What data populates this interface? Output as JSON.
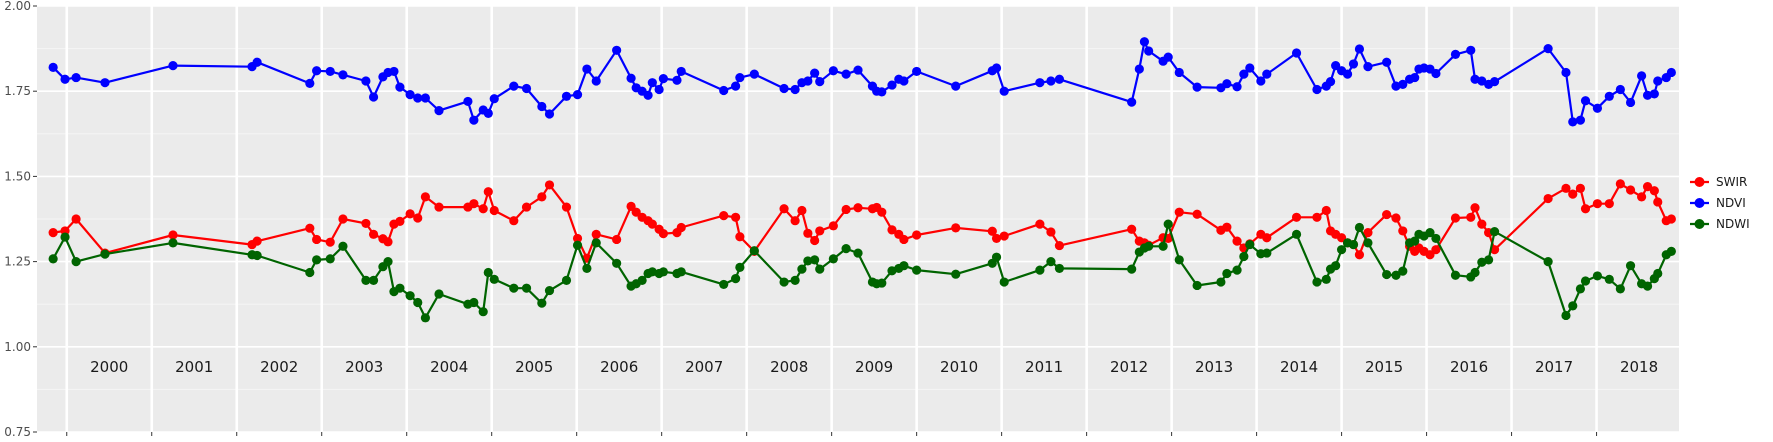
{
  "chart_data": {
    "type": "line",
    "title": "",
    "xlabel": "",
    "ylabel": "",
    "ylim": [
      0.75,
      2.0
    ],
    "yticks": [
      "0.75",
      "1.00",
      "1.25",
      "1.50",
      "1.75",
      "2.00"
    ],
    "xlim": [
      1999.65,
      2018.97
    ],
    "years": [
      "2000",
      "2001",
      "2002",
      "2003",
      "2004",
      "2005",
      "2006",
      "2007",
      "2008",
      "2009",
      "2010",
      "2011",
      "2012",
      "2013",
      "2014",
      "2015",
      "2016",
      "2017",
      "2018"
    ],
    "grid": true,
    "legend_position": "right",
    "series": [
      {
        "name": "SWIR",
        "color": "#ff0000",
        "x": [
          1999.84,
          1999.98,
          2000.11,
          2000.45,
          2001.25,
          2002.18,
          2002.24,
          2002.86,
          2002.94,
          2003.1,
          2003.25,
          2003.52,
          2003.61,
          2003.72,
          2003.78,
          2003.85,
          2003.92,
          2004.04,
          2004.13,
          2004.22,
          2004.38,
          2004.72,
          2004.79,
          2004.9,
          2004.96,
          2005.03,
          2005.26,
          2005.41,
          2005.59,
          2005.68,
          2005.88,
          2006.01,
          2006.12,
          2006.23,
          2006.47,
          2006.64,
          2006.7,
          2006.77,
          2006.84,
          2006.89,
          2006.97,
          2007.02,
          2007.18,
          2007.23,
          2007.73,
          2007.87,
          2007.92,
          2008.09,
          2008.44,
          2008.57,
          2008.65,
          2008.72,
          2008.8,
          2008.86,
          2009.02,
          2009.17,
          2009.31,
          2009.48,
          2009.53,
          2009.59,
          2009.71,
          2009.79,
          2009.85,
          2010.0,
          2010.46,
          2010.89,
          2010.94,
          2011.03,
          2011.45,
          2011.58,
          2011.68,
          2012.53,
          2012.62,
          2012.68,
          2012.73,
          2012.9,
          2012.96,
          2013.09,
          2013.3,
          2013.58,
          2013.65,
          2013.77,
          2013.85,
          2013.92,
          2014.05,
          2014.12,
          2014.47,
          2014.71,
          2014.82,
          2014.87,
          2014.93,
          2015.0,
          2015.07,
          2015.14,
          2015.21,
          2015.31,
          2015.53,
          2015.64,
          2015.72,
          2015.8,
          2015.86,
          2015.91,
          2015.97,
          2016.04,
          2016.11,
          2016.34,
          2016.52,
          2016.57,
          2016.65,
          2016.73,
          2016.8,
          2017.43,
          2017.64,
          2017.72,
          2017.81,
          2017.87,
          2018.01,
          2018.15,
          2018.28,
          2018.4,
          2018.53,
          2018.6,
          2018.68,
          2018.72,
          2018.82,
          2018.88
        ],
        "y": [
          1.335,
          1.34,
          1.375,
          1.275,
          1.328,
          1.3,
          1.31,
          1.348,
          1.315,
          1.307,
          1.375,
          1.362,
          1.33,
          1.317,
          1.308,
          1.36,
          1.368,
          1.39,
          1.378,
          1.44,
          1.41,
          1.41,
          1.42,
          1.405,
          1.455,
          1.4,
          1.37,
          1.41,
          1.44,
          1.475,
          1.41,
          1.318,
          1.26,
          1.33,
          1.315,
          1.412,
          1.395,
          1.38,
          1.37,
          1.36,
          1.345,
          1.332,
          1.335,
          1.35,
          1.385,
          1.38,
          1.323,
          1.28,
          1.405,
          1.37,
          1.4,
          1.333,
          1.312,
          1.34,
          1.355,
          1.403,
          1.408,
          1.405,
          1.409,
          1.395,
          1.343,
          1.33,
          1.315,
          1.328,
          1.349,
          1.339,
          1.318,
          1.325,
          1.36,
          1.337,
          1.297,
          1.345,
          1.31,
          1.305,
          1.298,
          1.32,
          1.318,
          1.395,
          1.389,
          1.342,
          1.351,
          1.31,
          1.29,
          1.302,
          1.33,
          1.32,
          1.38,
          1.38,
          1.4,
          1.34,
          1.33,
          1.32,
          1.305,
          1.3,
          1.27,
          1.335,
          1.388,
          1.378,
          1.34,
          1.295,
          1.28,
          1.29,
          1.28,
          1.27,
          1.285,
          1.378,
          1.38,
          1.408,
          1.36,
          1.335,
          1.285,
          1.435,
          1.465,
          1.448,
          1.465,
          1.405,
          1.42,
          1.42,
          1.478,
          1.46,
          1.44,
          1.47,
          1.458,
          1.425,
          1.37,
          1.375
        ]
      },
      {
        "name": "NDVI",
        "color": "#0000ff",
        "x": [
          1999.84,
          1999.98,
          2000.11,
          2000.45,
          2001.25,
          2002.18,
          2002.24,
          2002.86,
          2002.94,
          2003.1,
          2003.25,
          2003.52,
          2003.61,
          2003.72,
          2003.78,
          2003.85,
          2003.92,
          2004.04,
          2004.13,
          2004.22,
          2004.38,
          2004.72,
          2004.79,
          2004.9,
          2004.96,
          2005.03,
          2005.26,
          2005.41,
          2005.59,
          2005.68,
          2005.88,
          2006.01,
          2006.12,
          2006.23,
          2006.47,
          2006.64,
          2006.7,
          2006.77,
          2006.84,
          2006.89,
          2006.97,
          2007.02,
          2007.18,
          2007.23,
          2007.73,
          2007.87,
          2007.92,
          2008.09,
          2008.44,
          2008.57,
          2008.65,
          2008.72,
          2008.8,
          2008.86,
          2009.02,
          2009.17,
          2009.31,
          2009.48,
          2009.53,
          2009.59,
          2009.71,
          2009.79,
          2009.85,
          2010.0,
          2010.46,
          2010.89,
          2010.94,
          2011.03,
          2011.45,
          2011.58,
          2011.68,
          2012.53,
          2012.62,
          2012.68,
          2012.73,
          2012.9,
          2012.96,
          2013.09,
          2013.3,
          2013.58,
          2013.65,
          2013.77,
          2013.85,
          2013.92,
          2014.05,
          2014.12,
          2014.47,
          2014.71,
          2014.82,
          2014.87,
          2014.93,
          2015.0,
          2015.07,
          2015.14,
          2015.21,
          2015.31,
          2015.53,
          2015.64,
          2015.72,
          2015.8,
          2015.86,
          2015.91,
          2015.97,
          2016.04,
          2016.11,
          2016.34,
          2016.52,
          2016.57,
          2016.65,
          2016.73,
          2016.8,
          2017.43,
          2017.64,
          2017.72,
          2017.81,
          2017.87,
          2018.01,
          2018.15,
          2018.28,
          2018.4,
          2018.53,
          2018.6,
          2018.68,
          2018.72,
          2018.82,
          2018.88
        ],
        "y": [
          1.82,
          1.785,
          1.79,
          1.775,
          1.825,
          1.822,
          1.835,
          1.773,
          1.81,
          1.808,
          1.798,
          1.78,
          1.733,
          1.792,
          1.805,
          1.808,
          1.762,
          1.74,
          1.73,
          1.73,
          1.693,
          1.72,
          1.665,
          1.695,
          1.685,
          1.728,
          1.765,
          1.758,
          1.705,
          1.683,
          1.735,
          1.74,
          1.815,
          1.78,
          1.87,
          1.788,
          1.76,
          1.75,
          1.738,
          1.775,
          1.755,
          1.787,
          1.782,
          1.808,
          1.752,
          1.765,
          1.79,
          1.8,
          1.758,
          1.755,
          1.775,
          1.78,
          1.803,
          1.778,
          1.81,
          1.8,
          1.812,
          1.765,
          1.75,
          1.748,
          1.768,
          1.785,
          1.78,
          1.808,
          1.765,
          1.81,
          1.818,
          1.75,
          1.775,
          1.78,
          1.785,
          1.718,
          1.815,
          1.895,
          1.868,
          1.838,
          1.85,
          1.805,
          1.762,
          1.76,
          1.772,
          1.763,
          1.8,
          1.818,
          1.78,
          1.8,
          1.862,
          1.755,
          1.765,
          1.778,
          1.825,
          1.81,
          1.8,
          1.83,
          1.874,
          1.822,
          1.835,
          1.765,
          1.77,
          1.785,
          1.79,
          1.815,
          1.818,
          1.815,
          1.802,
          1.858,
          1.87,
          1.785,
          1.78,
          1.77,
          1.778,
          1.875,
          1.805,
          1.66,
          1.665,
          1.722,
          1.7,
          1.735,
          1.755,
          1.717,
          1.795,
          1.738,
          1.742,
          1.78,
          1.79,
          1.805
        ]
      },
      {
        "name": "NDWI",
        "color": "#006400",
        "x": [
          1999.84,
          1999.98,
          2000.11,
          2000.45,
          2001.25,
          2002.18,
          2002.24,
          2002.86,
          2002.94,
          2003.1,
          2003.25,
          2003.52,
          2003.61,
          2003.72,
          2003.78,
          2003.85,
          2003.92,
          2004.04,
          2004.13,
          2004.22,
          2004.38,
          2004.72,
          2004.79,
          2004.9,
          2004.96,
          2005.03,
          2005.26,
          2005.41,
          2005.59,
          2005.68,
          2005.88,
          2006.01,
          2006.12,
          2006.23,
          2006.47,
          2006.64,
          2006.7,
          2006.77,
          2006.84,
          2006.89,
          2006.97,
          2007.02,
          2007.18,
          2007.23,
          2007.73,
          2007.87,
          2007.92,
          2008.09,
          2008.44,
          2008.57,
          2008.65,
          2008.72,
          2008.8,
          2008.86,
          2009.02,
          2009.17,
          2009.31,
          2009.48,
          2009.53,
          2009.59,
          2009.71,
          2009.79,
          2009.85,
          2010.0,
          2010.46,
          2010.89,
          2010.94,
          2011.03,
          2011.45,
          2011.58,
          2011.68,
          2012.53,
          2012.62,
          2012.68,
          2012.73,
          2012.9,
          2012.96,
          2013.09,
          2013.3,
          2013.58,
          2013.65,
          2013.77,
          2013.85,
          2013.92,
          2014.05,
          2014.12,
          2014.47,
          2014.71,
          2014.82,
          2014.87,
          2014.93,
          2015.0,
          2015.07,
          2015.14,
          2015.21,
          2015.31,
          2015.53,
          2015.64,
          2015.72,
          2015.8,
          2015.86,
          2015.91,
          2015.97,
          2016.04,
          2016.11,
          2016.34,
          2016.52,
          2016.57,
          2016.65,
          2016.73,
          2016.8,
          2017.43,
          2017.64,
          2017.72,
          2017.81,
          2017.87,
          2018.01,
          2018.15,
          2018.28,
          2018.4,
          2018.53,
          2018.6,
          2018.68,
          2018.72,
          2018.82,
          2018.88
        ],
        "y": [
          1.258,
          1.322,
          1.25,
          1.272,
          1.305,
          1.27,
          1.268,
          1.218,
          1.255,
          1.258,
          1.295,
          1.195,
          1.195,
          1.235,
          1.25,
          1.162,
          1.172,
          1.15,
          1.13,
          1.085,
          1.155,
          1.125,
          1.13,
          1.103,
          1.218,
          1.198,
          1.172,
          1.172,
          1.128,
          1.165,
          1.195,
          1.298,
          1.23,
          1.305,
          1.245,
          1.178,
          1.185,
          1.195,
          1.215,
          1.22,
          1.215,
          1.22,
          1.215,
          1.22,
          1.183,
          1.2,
          1.233,
          1.282,
          1.19,
          1.195,
          1.228,
          1.252,
          1.255,
          1.228,
          1.258,
          1.288,
          1.275,
          1.19,
          1.185,
          1.187,
          1.223,
          1.23,
          1.238,
          1.225,
          1.213,
          1.245,
          1.263,
          1.19,
          1.225,
          1.25,
          1.23,
          1.228,
          1.278,
          1.29,
          1.295,
          1.295,
          1.36,
          1.255,
          1.18,
          1.19,
          1.215,
          1.225,
          1.265,
          1.3,
          1.273,
          1.275,
          1.33,
          1.19,
          1.198,
          1.228,
          1.238,
          1.285,
          1.305,
          1.3,
          1.35,
          1.305,
          1.212,
          1.21,
          1.222,
          1.305,
          1.31,
          1.33,
          1.325,
          1.335,
          1.318,
          1.21,
          1.205,
          1.218,
          1.248,
          1.255,
          1.338,
          1.25,
          1.092,
          1.12,
          1.17,
          1.193,
          1.208,
          1.198,
          1.17,
          1.238,
          1.185,
          1.178,
          1.2,
          1.215,
          1.27,
          1.28
        ]
      }
    ]
  }
}
